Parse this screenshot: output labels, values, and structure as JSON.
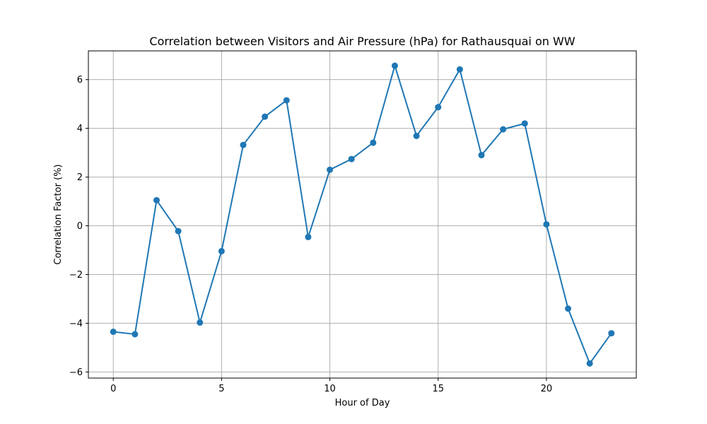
{
  "chart_data": {
    "type": "line",
    "title": "Correlation between Visitors and Air Pressure (hPa) for Rathausquai on WW",
    "xlabel": "Hour of Day",
    "ylabel": "Correlation Factor (%)",
    "x": [
      0,
      1,
      2,
      3,
      4,
      5,
      6,
      7,
      8,
      9,
      10,
      11,
      12,
      13,
      14,
      15,
      16,
      17,
      18,
      19,
      20,
      21,
      22,
      23
    ],
    "series": [
      {
        "values": [
          -4.35,
          -4.45,
          1.05,
          -0.22,
          -3.97,
          -1.04,
          3.32,
          4.48,
          5.15,
          -0.46,
          2.3,
          2.74,
          3.41,
          6.57,
          3.69,
          4.87,
          6.42,
          2.9,
          3.96,
          4.2,
          0.06,
          -3.4,
          -5.65,
          -4.41
        ],
        "color": "#1f77b4",
        "marker": "circle"
      }
    ],
    "xlim": [
      -1.15,
      24.15
    ],
    "ylim": [
      -6.25,
      7.18
    ],
    "xticks": [
      0,
      5,
      10,
      15,
      20
    ],
    "yticks": [
      -6,
      -4,
      -2,
      0,
      2,
      4,
      6
    ],
    "ytick_labels": [
      "−6",
      "−4",
      "−2",
      "0",
      "2",
      "4",
      "6"
    ],
    "grid": true
  }
}
